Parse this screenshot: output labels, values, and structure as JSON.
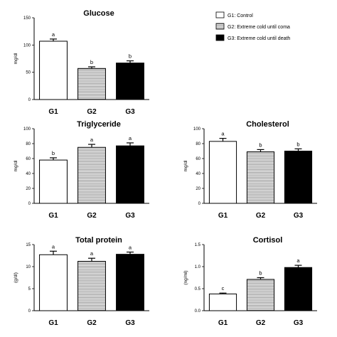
{
  "legend": {
    "items": [
      {
        "label": "G1: Control",
        "fill": "white"
      },
      {
        "label": "G2: Extreme cold until coma",
        "fill": "hatch"
      },
      {
        "label": "G3: Extreme cold until death",
        "fill": "black"
      }
    ]
  },
  "colors": {
    "bar_black": "#000000",
    "bar_white": "#ffffff",
    "hatch_line": "#777777",
    "axis": "#000000"
  },
  "chart_data": [
    {
      "type": "bar",
      "title": "Glucose",
      "ylabel": "mg/dl",
      "categories": [
        "G1",
        "G2",
        "G3"
      ],
      "values": [
        107,
        57,
        67
      ],
      "errors": [
        4,
        3,
        4
      ],
      "letters": [
        "a",
        "b",
        "b"
      ],
      "ylim": [
        0,
        150
      ],
      "yticks": [
        "0",
        "50",
        "100",
        "150"
      ],
      "ytick_values": [
        0,
        50,
        100,
        150
      ]
    },
    {
      "type": "bar",
      "title": "Triglyceride",
      "ylabel": "mg/dl",
      "categories": [
        "G1",
        "G2",
        "G3"
      ],
      "values": [
        58,
        75,
        77
      ],
      "errors": [
        3,
        4,
        4
      ],
      "letters": [
        "b",
        "a",
        "a"
      ],
      "ylim": [
        0,
        100
      ],
      "yticks": [
        "0",
        "20",
        "40",
        "60",
        "80",
        "100"
      ],
      "ytick_values": [
        0,
        20,
        40,
        60,
        80,
        100
      ]
    },
    {
      "type": "bar",
      "title": "Cholesterol",
      "ylabel": "mg/dl",
      "categories": [
        "G1",
        "G2",
        "G3"
      ],
      "values": [
        83,
        69,
        70
      ],
      "errors": [
        4,
        3,
        3
      ],
      "letters": [
        "a",
        "b",
        "b"
      ],
      "ylim": [
        0,
        100
      ],
      "yticks": [
        "0",
        "20",
        "40",
        "60",
        "80",
        "100"
      ],
      "ytick_values": [
        0,
        20,
        40,
        60,
        80,
        100
      ]
    },
    {
      "type": "bar",
      "title": "Total protein",
      "ylabel": "(g/dl)",
      "categories": [
        "G1",
        "G2",
        "G3"
      ],
      "values": [
        12.7,
        11.2,
        12.8
      ],
      "errors": [
        0.8,
        0.7,
        0.5
      ],
      "letters": [
        "a",
        "a",
        "a"
      ],
      "ylim": [
        0,
        15
      ],
      "yticks": [
        "0",
        "5",
        "10",
        "15"
      ],
      "ytick_values": [
        0,
        5,
        10,
        15
      ]
    },
    {
      "type": "bar",
      "title": "Cortisol",
      "ylabel": "(ng/ml)",
      "categories": [
        "G1",
        "G2",
        "G3"
      ],
      "values": [
        0.38,
        0.71,
        0.98
      ],
      "errors": [
        0.02,
        0.04,
        0.05
      ],
      "letters": [
        "c",
        "b",
        "a"
      ],
      "ylim": [
        0,
        1.5
      ],
      "yticks": [
        "0.0",
        "0.5",
        "1.0",
        "1.5"
      ],
      "ytick_values": [
        0,
        0.5,
        1.0,
        1.5
      ]
    }
  ]
}
